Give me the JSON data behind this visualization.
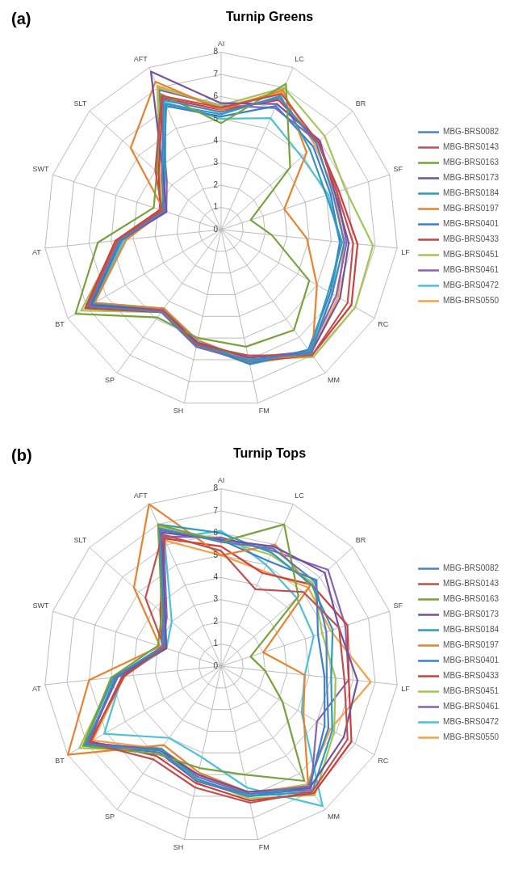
{
  "chart_data": [
    {
      "type": "radar",
      "title": "Turnip Greens",
      "annotations": [
        "(a)"
      ],
      "categories": [
        "AI",
        "LC",
        "BR",
        "SF",
        "LF",
        "RC",
        "MM",
        "FM",
        "SH",
        "SP",
        "BT",
        "AT",
        "SWT",
        "SLT",
        "AFT"
      ],
      "ylim": [
        0,
        8
      ],
      "yticks": [
        0,
        1,
        2,
        3,
        4,
        5,
        6,
        7,
        8
      ],
      "grid": true,
      "legend": "right",
      "marker": "none",
      "line_style": "solid",
      "series": [
        {
          "name": "MBG-BRS0082",
          "color": "#4f81bd",
          "values": [
            5.3,
            6.5,
            5.8,
            5.3,
            5.6,
            5.8,
            6.9,
            6.0,
            5.4,
            4.6,
            6.9,
            4.6,
            2.7,
            3.6,
            6.4
          ]
        },
        {
          "name": "MBG-BRS0143",
          "color": "#c0504d",
          "values": [
            5.5,
            6.7,
            5.9,
            5.5,
            6.0,
            6.6,
            7.0,
            5.8,
            5.3,
            4.5,
            7.0,
            4.7,
            2.8,
            4.0,
            6.6
          ]
        },
        {
          "name": "MBG-BRS0163",
          "color": "#77a33c",
          "values": [
            4.8,
            7.2,
            4.2,
            1.4,
            2.3,
            4.6,
            5.6,
            5.4,
            5.0,
            4.9,
            7.6,
            5.6,
            3.2,
            3.9,
            6.7
          ]
        },
        {
          "name": "MBG-BRS0173",
          "color": "#7052a0",
          "values": [
            5.7,
            6.2,
            6.0,
            5.4,
            5.8,
            6.2,
            6.9,
            5.9,
            5.2,
            4.5,
            6.8,
            4.6,
            2.6,
            3.5,
            7.8
          ]
        },
        {
          "name": "MBG-BRS0184",
          "color": "#2e9bb8",
          "values": [
            5.2,
            6.6,
            5.4,
            5.0,
            5.5,
            5.6,
            6.8,
            6.1,
            5.2,
            4.5,
            6.7,
            4.5,
            2.8,
            3.4,
            6.2
          ]
        },
        {
          "name": "MBG-BRS0197",
          "color": "#e8822e",
          "values": [
            5.4,
            6.9,
            5.2,
            3.0,
            3.9,
            5.0,
            7.0,
            6.0,
            5.1,
            4.4,
            6.6,
            4.3,
            2.7,
            5.5,
            7.3
          ]
        },
        {
          "name": "MBG-BRS0401",
          "color": "#3d7fc9",
          "values": [
            5.1,
            6.1,
            5.6,
            5.2,
            5.4,
            5.7,
            6.7,
            6.2,
            5.3,
            4.4,
            6.9,
            4.5,
            2.7,
            3.5,
            6.1
          ]
        },
        {
          "name": "MBG-BRS0433",
          "color": "#d03e3a",
          "values": [
            5.4,
            6.4,
            5.9,
            5.6,
            6.2,
            6.8,
            7.0,
            6.1,
            5.4,
            4.6,
            7.1,
            4.8,
            2.9,
            3.8,
            6.5
          ]
        },
        {
          "name": "MBG-BRS0451",
          "color": "#a2c555",
          "values": [
            5.6,
            7.0,
            6.3,
            5.9,
            6.9,
            7.0,
            7.1,
            6.0,
            5.2,
            4.6,
            7.3,
            4.7,
            2.8,
            3.8,
            7.0
          ]
        },
        {
          "name": "MBG-BRS0461",
          "color": "#8a62b5",
          "values": [
            5.6,
            6.0,
            5.9,
            5.5,
            5.7,
            6.0,
            6.8,
            5.9,
            5.3,
            4.5,
            6.9,
            4.6,
            2.6,
            3.3,
            6.9
          ]
        },
        {
          "name": "MBG-BRS0472",
          "color": "#4cc1d8",
          "values": [
            5.0,
            5.5,
            4.9,
            5.1,
            5.4,
            5.8,
            6.8,
            6.2,
            5.2,
            4.4,
            6.6,
            4.4,
            2.7,
            3.5,
            6.3
          ]
        },
        {
          "name": "MBG-BRS0550",
          "color": "#f7a04a",
          "values": [
            5.5,
            6.8,
            5.7,
            5.4,
            5.6,
            6.1,
            6.9,
            6.2,
            5.3,
            4.6,
            6.8,
            4.6,
            2.8,
            3.7,
            7.1
          ]
        }
      ]
    },
    {
      "type": "radar",
      "title": "Turnip Tops",
      "annotations": [
        "(b)"
      ],
      "categories": [
        "AI",
        "LC",
        "BR",
        "SF",
        "LF",
        "RC",
        "MM",
        "FM",
        "SH",
        "SP",
        "BT",
        "AT",
        "SWT",
        "SLT",
        "AFT"
      ],
      "ylim": [
        0,
        8
      ],
      "yticks": [
        0,
        1,
        2,
        3,
        4,
        5,
        6,
        7,
        8
      ],
      "grid": true,
      "legend": "right",
      "marker": "none",
      "line_style": "solid",
      "series": [
        {
          "name": "MBG-BRS0082",
          "color": "#4f81bd",
          "values": [
            5.6,
            5.8,
            5.7,
            5.0,
            4.8,
            5.6,
            6.7,
            5.9,
            5.3,
            4.7,
            7.0,
            4.8,
            2.8,
            3.5,
            6.8
          ]
        },
        {
          "name": "MBG-BRS0143",
          "color": "#c0504d",
          "values": [
            5.2,
            3.8,
            5.0,
            5.6,
            5.6,
            6.6,
            7.0,
            6.3,
            5.6,
            5.2,
            6.9,
            4.4,
            2.7,
            4.6,
            6.5
          ]
        },
        {
          "name": "MBG-BRS0163",
          "color": "#77a33c",
          "values": [
            5.6,
            7.0,
            4.7,
            1.4,
            2.0,
            3.2,
            6.4,
            5.0,
            4.7,
            4.9,
            7.2,
            5.0,
            3.0,
            3.6,
            7.0
          ]
        },
        {
          "name": "MBG-BRS0173",
          "color": "#7052a0",
          "values": [
            5.7,
            5.9,
            6.3,
            5.6,
            6.2,
            6.4,
            6.8,
            5.8,
            5.0,
            4.7,
            6.9,
            4.8,
            2.6,
            3.4,
            6.6
          ]
        },
        {
          "name": "MBG-BRS0184",
          "color": "#2e9bb8",
          "values": [
            6.0,
            5.6,
            5.5,
            5.3,
            5.0,
            5.8,
            7.0,
            6.0,
            5.2,
            4.6,
            7.2,
            4.9,
            2.8,
            3.5,
            7.0
          ]
        },
        {
          "name": "MBG-BRS0197",
          "color": "#e8822e",
          "values": [
            5.0,
            6.0,
            5.4,
            2.0,
            3.8,
            4.3,
            6.7,
            5.8,
            4.9,
            4.4,
            8.0,
            6.0,
            2.9,
            5.3,
            8.0
          ]
        },
        {
          "name": "MBG-BRS0401",
          "color": "#3d7fc9",
          "values": [
            5.7,
            5.2,
            5.8,
            4.6,
            4.7,
            5.4,
            6.8,
            6.0,
            5.3,
            4.8,
            7.1,
            4.7,
            2.7,
            3.4,
            6.7
          ]
        },
        {
          "name": "MBG-BRS0433",
          "color": "#d03e3a",
          "values": [
            5.4,
            4.6,
            5.5,
            6.0,
            5.8,
            6.8,
            7.1,
            6.2,
            5.4,
            5.0,
            6.8,
            4.5,
            2.8,
            3.7,
            6.3
          ]
        },
        {
          "name": "MBG-BRS0451",
          "color": "#a2c555",
          "values": [
            5.7,
            5.5,
            5.6,
            4.8,
            5.2,
            5.9,
            7.2,
            6.1,
            5.2,
            4.7,
            7.4,
            4.9,
            2.7,
            3.6,
            6.9
          ]
        },
        {
          "name": "MBG-BRS0461",
          "color": "#8a62b5",
          "values": [
            5.8,
            5.7,
            6.5,
            5.9,
            5.8,
            5.0,
            6.9,
            5.9,
            5.1,
            4.6,
            7.0,
            4.7,
            2.8,
            3.3,
            6.4
          ]
        },
        {
          "name": "MBG-BRS0472",
          "color": "#4cc1d8",
          "values": [
            6.1,
            5.0,
            4.6,
            4.4,
            3.8,
            4.2,
            7.8,
            5.6,
            4.2,
            4.0,
            6.1,
            4.5,
            2.6,
            3.0,
            6.3
          ]
        },
        {
          "name": "MBG-BRS0550",
          "color": "#f7a04a",
          "values": [
            5.0,
            4.7,
            5.3,
            5.2,
            6.8,
            5.7,
            6.6,
            5.9,
            5.0,
            4.6,
            6.7,
            4.4,
            2.7,
            3.5,
            6.2
          ]
        }
      ]
    }
  ]
}
